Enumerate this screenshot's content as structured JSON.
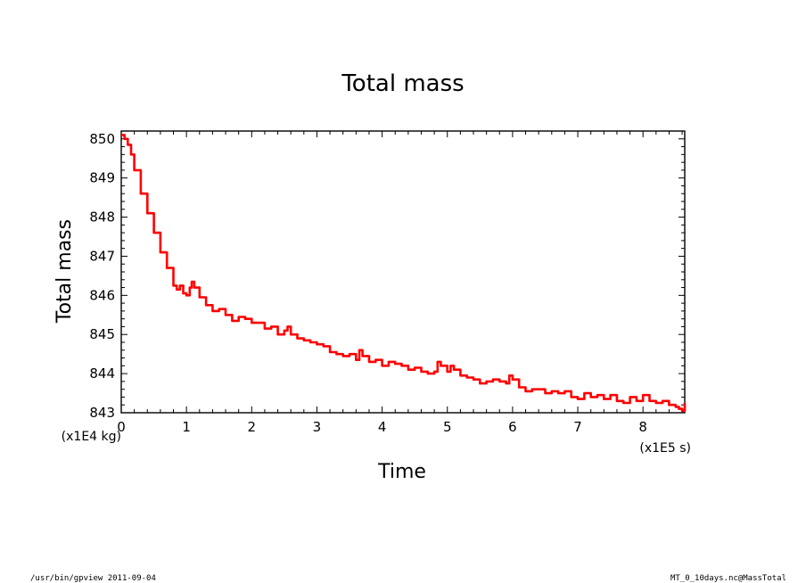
{
  "chart_data": {
    "type": "line",
    "title": "Total mass",
    "xlabel": "Time",
    "ylabel": "Total mass",
    "x_unit_label": "(x1E5 s)",
    "y_unit_label": "(x1E4 kg)",
    "xlim": [
      0,
      8.64
    ],
    "ylim": [
      843,
      850.2
    ],
    "x_ticks": [
      0,
      1,
      2,
      3,
      4,
      5,
      6,
      7,
      8
    ],
    "y_ticks": [
      843,
      844,
      845,
      846,
      847,
      848,
      849,
      850
    ],
    "grid": false,
    "line_color": "#ff0000",
    "series": [
      {
        "x": [
          0,
          0.05,
          0.1,
          0.15,
          0.2,
          0.3,
          0.4,
          0.5,
          0.6,
          0.7,
          0.8,
          0.85,
          0.9,
          0.95,
          1.0,
          1.05,
          1.08,
          1.12,
          1.2,
          1.3,
          1.4,
          1.5,
          1.6,
          1.7,
          1.8,
          1.9,
          2.0,
          2.1,
          2.2,
          2.3,
          2.4,
          2.5,
          2.55,
          2.6,
          2.7,
          2.8,
          2.9,
          3.0,
          3.1,
          3.2,
          3.3,
          3.4,
          3.5,
          3.6,
          3.65,
          3.7,
          3.8,
          3.9,
          4.0,
          4.1,
          4.2,
          4.3,
          4.4,
          4.5,
          4.6,
          4.7,
          4.8,
          4.85,
          4.9,
          5.0,
          5.05,
          5.1,
          5.2,
          5.3,
          5.4,
          5.5,
          5.6,
          5.7,
          5.8,
          5.9,
          5.95,
          6.0,
          6.1,
          6.2,
          6.3,
          6.4,
          6.5,
          6.6,
          6.7,
          6.8,
          6.9,
          7.0,
          7.1,
          7.2,
          7.3,
          7.4,
          7.5,
          7.6,
          7.7,
          7.8,
          7.9,
          8.0,
          8.1,
          8.2,
          8.3,
          8.4,
          8.5,
          8.55,
          8.6,
          8.64
        ],
        "y": [
          850.1,
          850.0,
          849.85,
          849.6,
          849.2,
          848.6,
          848.1,
          847.6,
          847.1,
          846.7,
          846.25,
          846.15,
          846.25,
          846.05,
          846.0,
          846.2,
          846.35,
          846.2,
          845.95,
          845.75,
          845.6,
          845.65,
          845.5,
          845.35,
          845.45,
          845.4,
          845.3,
          845.3,
          845.15,
          845.2,
          845.0,
          845.1,
          845.2,
          845.0,
          844.9,
          844.85,
          844.8,
          844.75,
          844.7,
          844.55,
          844.5,
          844.45,
          844.5,
          844.35,
          844.6,
          844.45,
          844.3,
          844.35,
          844.2,
          844.3,
          844.25,
          844.2,
          844.1,
          844.15,
          844.05,
          844.0,
          844.05,
          844.3,
          844.2,
          844.05,
          844.2,
          844.1,
          843.95,
          843.9,
          843.85,
          843.75,
          843.8,
          843.85,
          843.8,
          843.75,
          843.95,
          843.85,
          843.65,
          843.55,
          843.6,
          843.6,
          843.5,
          843.55,
          843.5,
          843.55,
          843.4,
          843.35,
          843.5,
          843.4,
          843.45,
          843.35,
          843.45,
          843.3,
          843.25,
          843.4,
          843.3,
          843.45,
          843.3,
          843.25,
          843.3,
          843.2,
          843.15,
          843.1,
          843.05,
          843.25
        ]
      }
    ]
  },
  "footer": {
    "left": "/usr/bin/gpview  2011-09-04",
    "right": "MT_0_10days.nc@MassTotal"
  }
}
